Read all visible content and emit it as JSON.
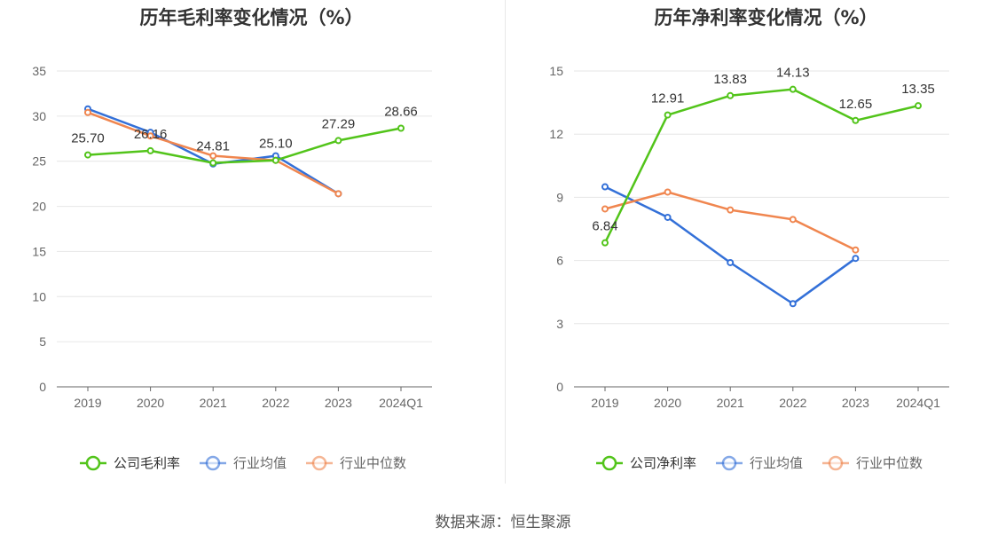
{
  "source_text": "数据来源：恒生聚源",
  "chart_data": [
    {
      "type": "line",
      "title": "历年毛利率变化情况（%）",
      "categories": [
        "2019",
        "2020",
        "2021",
        "2022",
        "2023",
        "2024Q1"
      ],
      "ylim": [
        0,
        35
      ],
      "yticks": [
        0,
        5,
        10,
        15,
        20,
        25,
        30,
        35
      ],
      "grid": true,
      "legend_position": "bottom-center",
      "series": [
        {
          "name": "公司毛利率",
          "color": "#52c41a",
          "values": [
            25.7,
            26.16,
            24.81,
            25.1,
            27.29,
            28.66
          ],
          "labels": [
            "25.70",
            "26.16",
            "24.81",
            "25.10",
            "27.29",
            "28.66"
          ]
        },
        {
          "name": "行业均值",
          "color": "#3370d8",
          "values": [
            30.8,
            28.2,
            24.7,
            25.6,
            21.4,
            null
          ]
        },
        {
          "name": "行业中位数",
          "color": "#f0864f",
          "values": [
            30.4,
            27.8,
            25.6,
            25.1,
            21.4,
            null
          ]
        }
      ]
    },
    {
      "type": "line",
      "title": "历年净利率变化情况（%）",
      "categories": [
        "2019",
        "2020",
        "2021",
        "2022",
        "2023",
        "2024Q1"
      ],
      "ylim": [
        0,
        15
      ],
      "yticks": [
        0,
        3,
        6,
        9,
        12,
        15
      ],
      "grid": true,
      "legend_position": "bottom-center",
      "series": [
        {
          "name": "公司净利率",
          "color": "#52c41a",
          "values": [
            6.84,
            12.91,
            13.83,
            14.13,
            12.65,
            13.35
          ],
          "labels": [
            "6.84",
            "12.91",
            "13.83",
            "14.13",
            "12.65",
            "13.35"
          ]
        },
        {
          "name": "行业均值",
          "color": "#3370d8",
          "values": [
            9.5,
            8.05,
            5.9,
            3.95,
            6.1,
            null
          ]
        },
        {
          "name": "行业中位数",
          "color": "#f0864f",
          "values": [
            8.45,
            9.25,
            8.4,
            7.95,
            6.5,
            null
          ]
        }
      ]
    }
  ]
}
